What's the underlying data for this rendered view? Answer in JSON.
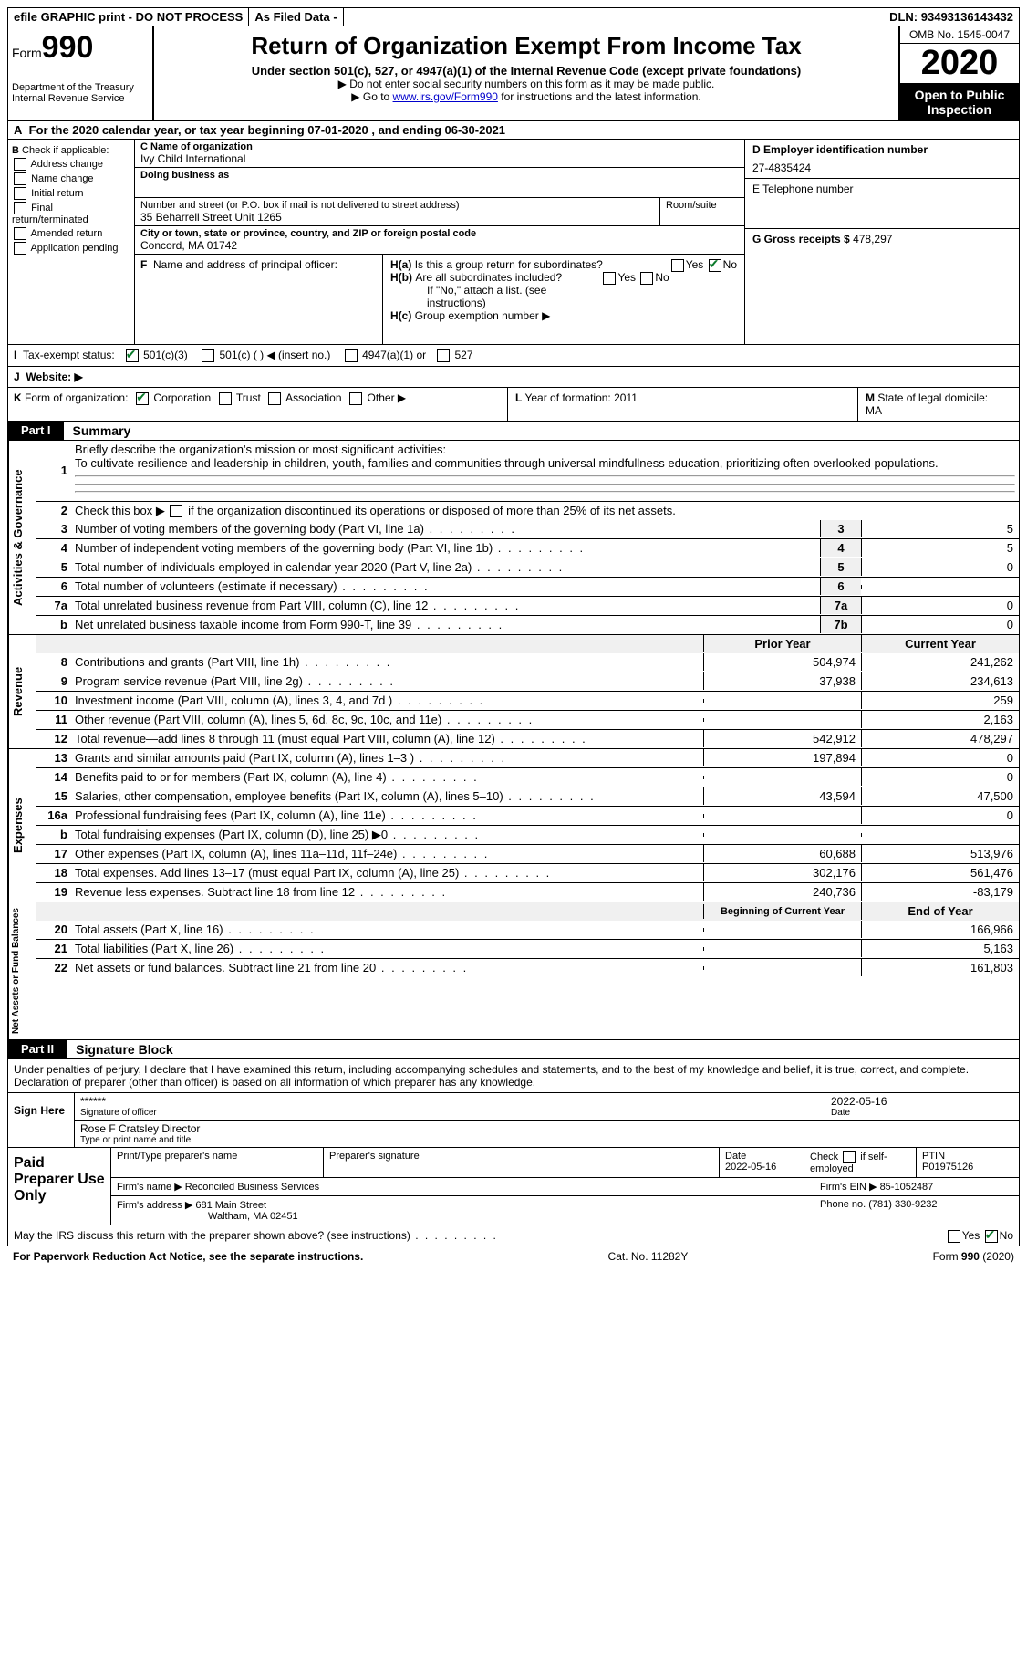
{
  "topbar": {
    "efile": "efile GRAPHIC print - DO NOT PROCESS",
    "asfiled": "As Filed Data -",
    "dln_label": "DLN:",
    "dln": "93493136143432"
  },
  "header": {
    "form_label": "Form",
    "form_num": "990",
    "dept": "Department of the Treasury\nInternal Revenue Service",
    "title": "Return of Organization Exempt From Income Tax",
    "sub": "Under section 501(c), 527, or 4947(a)(1) of the Internal Revenue Code (except private foundations)",
    "note1": "▶ Do not enter social security numbers on this form as it may be made public.",
    "note2_pre": "▶ Go to ",
    "note2_link": "www.irs.gov/Form990",
    "note2_post": " for instructions and the latest information.",
    "omb": "OMB No. 1545-0047",
    "year": "2020",
    "inspect": "Open to Public Inspection"
  },
  "A": "For the 2020 calendar year, or tax year beginning 07-01-2020   , and ending 06-30-2021",
  "B": {
    "label": "Check if applicable:",
    "items": [
      "Address change",
      "Name change",
      "Initial return",
      "Final return/terminated",
      "Amended return",
      "Application pending"
    ]
  },
  "C": {
    "name_label": "C Name of organization",
    "name": "Ivy Child International",
    "dba_label": "Doing business as",
    "addr_label": "Number and street (or P.O. box if mail is not delivered to street address)",
    "addr": "35 Beharrell Street Unit 1265",
    "room_label": "Room/suite",
    "city_label": "City or town, state or province, country, and ZIP or foreign postal code",
    "city": "Concord, MA  01742"
  },
  "D": {
    "label": "D Employer identification number",
    "ein": "27-4835424"
  },
  "E": {
    "label": "E Telephone number",
    "val": ""
  },
  "G": {
    "label": "G Gross receipts $",
    "val": "478,297"
  },
  "F": "Name and address of principal officer:",
  "H": {
    "a": "Is this a group return for subordinates?",
    "b": "Are all subordinates included?",
    "b_note": "If \"No,\" attach a list. (see instructions)",
    "c": "Group exemption number ▶"
  },
  "I": {
    "label": "Tax-exempt status:",
    "o1": "501(c)(3)",
    "o2": "501(c) (   ) ◀ (insert no.)",
    "o3": "4947(a)(1) or",
    "o4": "527"
  },
  "J": "Website: ▶",
  "K": {
    "label": "Form of organization:",
    "o1": "Corporation",
    "o2": "Trust",
    "o3": "Association",
    "o4": "Other ▶"
  },
  "L": {
    "label": "Year of formation:",
    "val": "2011"
  },
  "M": {
    "label": "State of legal domicile:",
    "val": "MA"
  },
  "part1": {
    "tag": "Part I",
    "title": "Summary"
  },
  "mission": {
    "label": "Briefly describe the organization's mission or most significant activities:",
    "text": "To cultivate resilience and leadership in children, youth, families and communities through universal mindfullness education, prioritizing often overlooked populations."
  },
  "line2": "Check this box ▶        if the organization discontinued its operations or disposed of more than 25% of its net assets.",
  "gov_rows": [
    {
      "n": "3",
      "d": "Number of voting members of the governing body (Part VI, line 1a)",
      "box": "3",
      "v": "5"
    },
    {
      "n": "4",
      "d": "Number of independent voting members of the governing body (Part VI, line 1b)",
      "box": "4",
      "v": "5"
    },
    {
      "n": "5",
      "d": "Total number of individuals employed in calendar year 2020 (Part V, line 2a)",
      "box": "5",
      "v": "0"
    },
    {
      "n": "6",
      "d": "Total number of volunteers (estimate if necessary)",
      "box": "6",
      "v": ""
    },
    {
      "n": "7a",
      "d": "Total unrelated business revenue from Part VIII, column (C), line 12",
      "box": "7a",
      "v": "0"
    },
    {
      "n": "b",
      "d": "Net unrelated business taxable income from Form 990-T, line 39",
      "box": "7b",
      "v": "0"
    }
  ],
  "yr_hdr": {
    "p": "Prior Year",
    "c": "Current Year"
  },
  "rev_rows": [
    {
      "n": "8",
      "d": "Contributions and grants (Part VIII, line 1h)",
      "p": "504,974",
      "c": "241,262"
    },
    {
      "n": "9",
      "d": "Program service revenue (Part VIII, line 2g)",
      "p": "37,938",
      "c": "234,613"
    },
    {
      "n": "10",
      "d": "Investment income (Part VIII, column (A), lines 3, 4, and 7d )",
      "p": "",
      "c": "259"
    },
    {
      "n": "11",
      "d": "Other revenue (Part VIII, column (A), lines 5, 6d, 8c, 9c, 10c, and 11e)",
      "p": "",
      "c": "2,163"
    },
    {
      "n": "12",
      "d": "Total revenue—add lines 8 through 11 (must equal Part VIII, column (A), line 12)",
      "p": "542,912",
      "c": "478,297"
    }
  ],
  "exp_rows": [
    {
      "n": "13",
      "d": "Grants and similar amounts paid (Part IX, column (A), lines 1–3 )",
      "p": "197,894",
      "c": "0"
    },
    {
      "n": "14",
      "d": "Benefits paid to or for members (Part IX, column (A), line 4)",
      "p": "",
      "c": "0"
    },
    {
      "n": "15",
      "d": "Salaries, other compensation, employee benefits (Part IX, column (A), lines 5–10)",
      "p": "43,594",
      "c": "47,500"
    },
    {
      "n": "16a",
      "d": "Professional fundraising fees (Part IX, column (A), line 11e)",
      "p": "",
      "c": "0"
    },
    {
      "n": "b",
      "d": "Total fundraising expenses (Part IX, column (D), line 25) ▶0",
      "p": "",
      "c": ""
    },
    {
      "n": "17",
      "d": "Other expenses (Part IX, column (A), lines 11a–11d, 11f–24e)",
      "p": "60,688",
      "c": "513,976"
    },
    {
      "n": "18",
      "d": "Total expenses. Add lines 13–17 (must equal Part IX, column (A), line 25)",
      "p": "302,176",
      "c": "561,476"
    },
    {
      "n": "19",
      "d": "Revenue less expenses. Subtract line 18 from line 12",
      "p": "240,736",
      "c": "-83,179"
    }
  ],
  "na_hdr": {
    "p": "Beginning of Current Year",
    "c": "End of Year"
  },
  "na_rows": [
    {
      "n": "20",
      "d": "Total assets (Part X, line 16)",
      "p": "",
      "c": "166,966"
    },
    {
      "n": "21",
      "d": "Total liabilities (Part X, line 26)",
      "p": "",
      "c": "5,163"
    },
    {
      "n": "22",
      "d": "Net assets or fund balances. Subtract line 21 from line 20",
      "p": "",
      "c": "161,803"
    }
  ],
  "part2": {
    "tag": "Part II",
    "title": "Signature Block"
  },
  "sig": {
    "intro": "Under penalties of perjury, I declare that I have examined this return, including accompanying schedules and statements, and to the best of my knowledge and belief, it is true, correct, and complete. Declaration of preparer (other than officer) is based on all information of which preparer has any knowledge.",
    "here": "Sign Here",
    "stars": "******",
    "sig_label": "Signature of officer",
    "date": "2022-05-16",
    "date_label": "Date",
    "name": "Rose F Cratsley  Director",
    "name_label": "Type or print name and title"
  },
  "prep": {
    "label": "Paid Preparer Use Only",
    "h1": "Print/Type preparer's name",
    "h2": "Preparer's signature",
    "h3": "Date",
    "h3v": "2022-05-16",
    "h4": "Check        if self-employed",
    "h5": "PTIN",
    "h5v": "P01975126",
    "firm_label": "Firm's name    ▶",
    "firm": "Reconciled Business Services",
    "ein_label": "Firm's EIN ▶",
    "ein": "85-1052487",
    "addr_label": "Firm's address ▶",
    "addr1": "681 Main Street",
    "addr2": "Waltham, MA  02451",
    "phone_label": "Phone no.",
    "phone": "(781) 330-9232"
  },
  "discuss": "May the IRS discuss this return with the preparer shown above? (see instructions)",
  "foot": {
    "l": "For Paperwork Reduction Act Notice, see the separate instructions.",
    "m": "Cat. No. 11282Y",
    "r": "Form 990 (2020)"
  },
  "vlabels": {
    "gov": "Activities & Governance",
    "rev": "Revenue",
    "exp": "Expenses",
    "na": "Net Assets or Fund Balances"
  }
}
